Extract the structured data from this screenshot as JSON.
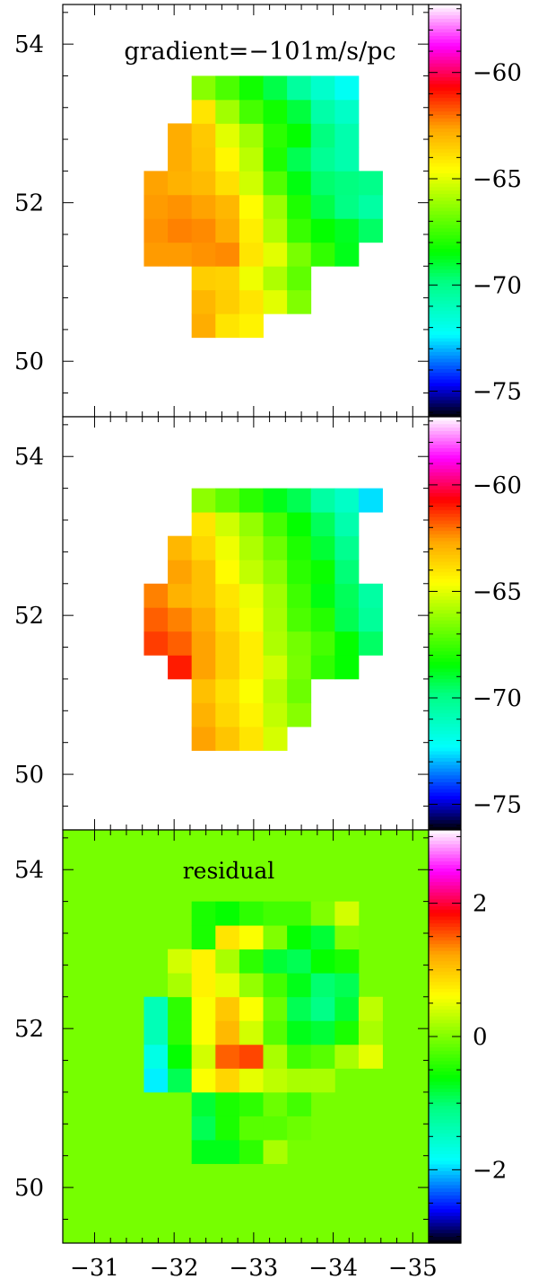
{
  "chart_data": [
    {
      "type": "heatmap",
      "panel": "top",
      "annotation": "gradient=−101m/s/pc",
      "xlim": [
        -30.6,
        -35.2
      ],
      "ylim": [
        49.3,
        54.5
      ],
      "xticks": [
        "−31",
        "−32",
        "−33",
        "−34",
        "−35"
      ],
      "yticks": [
        "50",
        "52",
        "54"
      ],
      "colorbar": {
        "range": [
          -76.2,
          -56.8
        ],
        "ticks": [
          "−60",
          "−65",
          "−70",
          "−75"
        ]
      },
      "grid": {
        "x0": -31.47,
        "dx": -0.3,
        "y0": 50.15,
        "dy": 0.3
      },
      "rows": [
        [
          null,
          null,
          null,
          null,
          null,
          null,
          null,
          null,
          null,
          null,
          null
        ],
        [
          null,
          null,
          null,
          -62.8,
          -64.0,
          -64.3,
          null,
          null,
          null,
          null,
          null
        ],
        [
          null,
          null,
          null,
          -63.0,
          -63.5,
          -64.0,
          -65.0,
          -66.5,
          null,
          null,
          null
        ],
        [
          null,
          null,
          null,
          -63.5,
          -63.6,
          -64.8,
          -65.8,
          -67.0,
          null,
          null,
          null
        ],
        [
          null,
          -62.5,
          -62.5,
          -62.4,
          -62.3,
          -64.0,
          -65.0,
          -66.6,
          -67.7,
          -68.7,
          null
        ],
        [
          null,
          -62.4,
          -62.2,
          -62.3,
          -62.8,
          -64.2,
          -65.8,
          -67.6,
          -68.4,
          -68.8,
          -69.5
        ],
        [
          null,
          -62.5,
          -62.4,
          -62.6,
          -63.0,
          -64.5,
          -66.1,
          -68.0,
          -69.2,
          -69.9,
          -70.5
        ],
        [
          null,
          -62.6,
          -62.9,
          -63.1,
          -63.9,
          -65.3,
          -67.2,
          -68.6,
          -69.6,
          -69.8,
          -70.0
        ],
        [
          null,
          null,
          -62.8,
          -63.3,
          -64.4,
          -65.6,
          -68.0,
          -69.3,
          -70.2,
          -70.7,
          null
        ],
        [
          null,
          null,
          -62.8,
          -63.4,
          -65.0,
          -66.0,
          -67.8,
          -68.4,
          -69.8,
          -70.7,
          null
        ],
        [
          null,
          null,
          null,
          -64.0,
          -66.0,
          -67.4,
          -68.2,
          -69.1,
          -70.6,
          -71.2,
          null
        ],
        [
          null,
          null,
          null,
          -66.4,
          -67.3,
          -68.2,
          -69.2,
          -70.4,
          -71.3,
          -72.1,
          null
        ],
        [
          null,
          null,
          null,
          null,
          null,
          null,
          null,
          null,
          null,
          null,
          null
        ]
      ]
    },
    {
      "type": "heatmap",
      "panel": "middle",
      "xlim": [
        -30.6,
        -35.2
      ],
      "ylim": [
        49.3,
        54.5
      ],
      "xticks": [
        "−31",
        "−32",
        "−33",
        "−34",
        "−35"
      ],
      "yticks": [
        "50",
        "52",
        "54"
      ],
      "colorbar": {
        "range": [
          -76.2,
          -56.8
        ],
        "ticks": [
          "−60",
          "−65",
          "−70",
          "−75"
        ]
      },
      "grid": {
        "x0": -31.47,
        "dx": -0.3,
        "y0": 50.15,
        "dy": 0.3
      },
      "rows": [
        [
          null,
          null,
          null,
          null,
          null,
          null,
          null,
          null,
          null,
          null,
          null
        ],
        [
          null,
          null,
          null,
          -62.6,
          -63.3,
          -64.0,
          -65.2,
          null,
          null,
          null,
          null
        ],
        [
          null,
          null,
          null,
          -62.9,
          -63.7,
          -64.3,
          -65.5,
          -66.4,
          null,
          null,
          null
        ],
        [
          null,
          null,
          null,
          -63.2,
          -63.9,
          -64.6,
          -65.7,
          -66.8,
          null,
          null,
          null
        ],
        [
          null,
          null,
          -61.0,
          -62.6,
          -63.5,
          -64.2,
          -65.3,
          -66.6,
          -67.7,
          -68.4,
          null
        ],
        [
          null,
          -61.4,
          -61.8,
          -62.6,
          -63.5,
          -64.2,
          -65.8,
          -66.7,
          -67.4,
          -68.4,
          -69.5
        ],
        [
          null,
          -61.8,
          -62.2,
          -62.8,
          -63.8,
          -64.7,
          -65.9,
          -67.3,
          -67.9,
          -69.3,
          -70.3
        ],
        [
          null,
          -62.2,
          -62.9,
          -63.2,
          -64.0,
          -64.9,
          -66.0,
          -67.5,
          -68.6,
          -69.4,
          -70.5
        ],
        [
          null,
          null,
          -62.6,
          -63.2,
          -64.5,
          -65.5,
          -66.4,
          -67.8,
          -68.3,
          -69.7,
          null
        ],
        [
          null,
          null,
          -63.0,
          -63.7,
          -64.8,
          -65.8,
          -66.8,
          -68.0,
          -69.0,
          -70.1,
          null
        ],
        [
          null,
          null,
          null,
          -64.0,
          -65.3,
          -66.2,
          -67.4,
          -68.4,
          -69.4,
          -70.7,
          null
        ],
        [
          null,
          null,
          null,
          -66.3,
          -67.0,
          -67.8,
          -68.7,
          -69.3,
          -70.5,
          -71.2,
          -72.6
        ],
        [
          null,
          null,
          null,
          null,
          null,
          null,
          null,
          null,
          null,
          null,
          null
        ]
      ]
    },
    {
      "type": "heatmap",
      "panel": "bottom",
      "annotation": "residual",
      "xlim": [
        -30.6,
        -35.2
      ],
      "ylim": [
        49.3,
        54.5
      ],
      "xticks": [
        "−31",
        "−32",
        "−33",
        "−34",
        "−35"
      ],
      "yticks": [
        "50",
        "52",
        "54"
      ],
      "colorbar": {
        "range": [
          -3.1,
          3.1
        ],
        "ticks": [
          "2",
          "0",
          "−2"
        ]
      },
      "background": -0.05,
      "grid": {
        "x0": -31.47,
        "dx": -0.3,
        "y0": 50.15,
        "dy": 0.3
      },
      "rows": [
        [
          null,
          null,
          null,
          null,
          null,
          null,
          null,
          null,
          null,
          null,
          null
        ],
        [
          null,
          null,
          null,
          -0.7,
          -0.7,
          -0.4,
          0.2,
          null,
          null,
          null,
          null
        ],
        [
          null,
          null,
          null,
          -0.9,
          -0.5,
          -0.2,
          -0.2,
          -0.1,
          null,
          null,
          null
        ],
        [
          null,
          null,
          null,
          -0.8,
          -0.5,
          -0.4,
          -0.1,
          -0.3,
          null,
          null,
          null
        ],
        [
          null,
          -1.9,
          -0.9,
          0.6,
          0.9,
          0.5,
          0.3,
          0.2,
          0.2,
          null,
          null
        ],
        [
          null,
          -1.7,
          -0.6,
          0.4,
          1.5,
          1.6,
          0.2,
          -0.3,
          -0.2,
          0.2,
          0.5
        ],
        [
          null,
          -1.4,
          -0.4,
          0.6,
          1.1,
          0.4,
          -0.2,
          -0.7,
          -0.8,
          -0.5,
          0.2
        ],
        [
          null,
          -1.4,
          -0.4,
          0.6,
          1.0,
          0.6,
          -0.1,
          -0.9,
          -1.1,
          -0.8,
          0.3
        ],
        [
          null,
          null,
          0.2,
          0.7,
          0.5,
          0.1,
          -0.3,
          -0.7,
          -1.0,
          -0.9,
          null
        ],
        [
          null,
          null,
          0.4,
          0.7,
          0.2,
          -0.4,
          -0.8,
          -0.9,
          -0.6,
          -0.5,
          null
        ],
        [
          null,
          null,
          null,
          -0.5,
          0.8,
          0.6,
          0.0,
          -0.6,
          -0.8,
          0.0,
          null
        ],
        [
          null,
          null,
          null,
          -0.5,
          -0.6,
          -0.4,
          -0.3,
          -0.3,
          0.0,
          0.4,
          null
        ],
        [
          null,
          null,
          null,
          null,
          null,
          null,
          null,
          null,
          null,
          null,
          null
        ]
      ]
    }
  ]
}
